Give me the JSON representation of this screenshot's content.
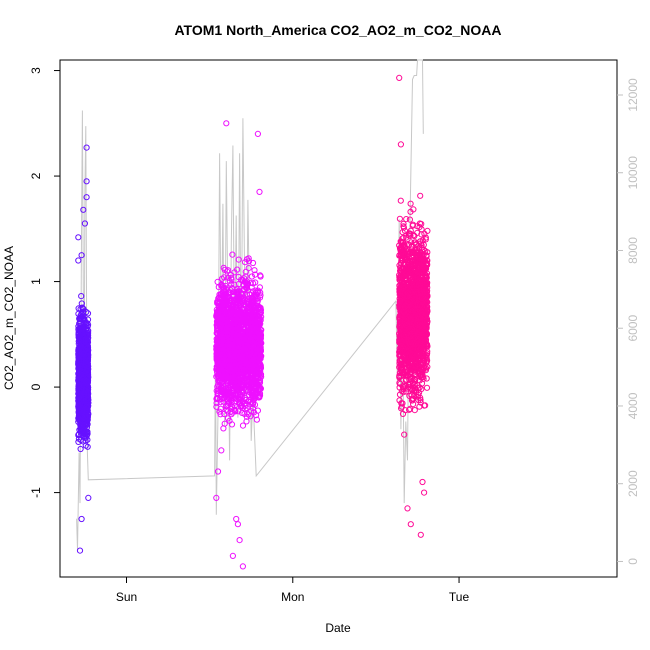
{
  "chart_data": {
    "type": "scatter",
    "title": "ATOM1 North_America CO2_AO2_m_CO2_NOAA",
    "xlabel": "Date",
    "ylabel": "CO2_AO2_m_CO2_NOAA",
    "x_ticks": [
      "Sun",
      "Mon",
      "Tue"
    ],
    "x_tick_day_positions": [
      0.0,
      1.0,
      2.0
    ],
    "xlim_days": [
      -0.4,
      2.95
    ],
    "ylim": [
      -1.8,
      3.1
    ],
    "y_ticks": [
      -1,
      0,
      1,
      2,
      3
    ],
    "y2_ticks": [
      0,
      2000,
      4000,
      6000,
      8000,
      10000,
      12000
    ],
    "y2lim": [
      -400,
      12900
    ],
    "y2_color": "#c0c0c0",
    "series": [
      {
        "color": "#6611ff",
        "points_summary": {
          "day_start": -0.29,
          "day_end": -0.23,
          "core_y_range": [
            -0.9,
            1.1
          ],
          "n_points": 1200,
          "outliers": [
            [
              -0.29,
              1.42
            ],
            [
              -0.29,
              1.2
            ],
            [
              -0.28,
              -1.55
            ],
            [
              -0.27,
              -1.25
            ],
            [
              -0.26,
              1.68
            ],
            [
              -0.24,
              2.27
            ],
            [
              -0.24,
              1.95
            ],
            [
              -0.27,
              1.25
            ],
            [
              -0.25,
              1.55
            ],
            [
              -0.24,
              1.8
            ],
            [
              -0.23,
              -1.05
            ]
          ]
        }
      },
      {
        "color": "#ee11ff",
        "points_summary": {
          "day_start": 0.54,
          "day_end": 0.81,
          "core_y_range": [
            -0.7,
            1.5
          ],
          "n_points": 2200,
          "outliers": [
            [
              0.54,
              -1.05
            ],
            [
              0.6,
              2.5
            ],
            [
              0.64,
              -1.6
            ],
            [
              0.66,
              -1.25
            ],
            [
              0.7,
              -1.7
            ],
            [
              0.68,
              -1.45
            ],
            [
              0.79,
              2.4
            ],
            [
              0.8,
              1.85
            ],
            [
              0.67,
              -1.3
            ],
            [
              0.55,
              -0.8
            ],
            [
              0.57,
              -0.6
            ],
            [
              0.76,
              -0.2
            ]
          ]
        }
      },
      {
        "color": "#ff0a96",
        "points_summary": {
          "day_start": 1.64,
          "day_end": 1.81,
          "core_y_range": [
            -0.7,
            2.1
          ],
          "n_points": 1800,
          "outliers": [
            [
              1.64,
              2.93
            ],
            [
              1.65,
              2.3
            ],
            [
              1.69,
              -1.15
            ],
            [
              1.71,
              -1.3
            ],
            [
              1.77,
              -1.4
            ],
            [
              1.8,
              1.4
            ],
            [
              1.79,
              -1.0
            ],
            [
              1.67,
              -0.45
            ],
            [
              1.78,
              -0.9
            ]
          ]
        }
      }
    ],
    "line_series": {
      "axis": "right",
      "color": "#c8c8c8",
      "points": [
        [
          -0.3,
          1100
        ],
        [
          -0.295,
          300
        ],
        [
          -0.285,
          2800
        ],
        [
          -0.28,
          1500
        ],
        [
          -0.275,
          5200
        ],
        [
          -0.27,
          8800
        ],
        [
          -0.265,
          11600
        ],
        [
          -0.26,
          7000
        ],
        [
          -0.255,
          3600
        ],
        [
          -0.25,
          9500
        ],
        [
          -0.245,
          11200
        ],
        [
          -0.24,
          6400
        ],
        [
          -0.235,
          2800
        ],
        [
          -0.23,
          2100
        ],
        [
          0.53,
          2200
        ],
        [
          0.535,
          5500
        ],
        [
          0.54,
          1200
        ],
        [
          0.55,
          3800
        ],
        [
          0.56,
          10500
        ],
        [
          0.57,
          5200
        ],
        [
          0.58,
          9200
        ],
        [
          0.59,
          3500
        ],
        [
          0.6,
          10300
        ],
        [
          0.61,
          6500
        ],
        [
          0.62,
          2600
        ],
        [
          0.63,
          8200
        ],
        [
          0.64,
          10700
        ],
        [
          0.65,
          5200
        ],
        [
          0.66,
          8900
        ],
        [
          0.67,
          3700
        ],
        [
          0.68,
          10500
        ],
        [
          0.69,
          4700
        ],
        [
          0.7,
          11400
        ],
        [
          0.71,
          7400
        ],
        [
          0.72,
          4200
        ],
        [
          0.73,
          9300
        ],
        [
          0.74,
          6400
        ],
        [
          0.75,
          3100
        ],
        [
          0.76,
          4300
        ],
        [
          0.78,
          2200
        ],
        [
          1.62,
          6700
        ],
        [
          1.63,
          4500
        ],
        [
          1.64,
          8800
        ],
        [
          1.65,
          3400
        ],
        [
          1.66,
          6700
        ],
        [
          1.67,
          1500
        ],
        [
          1.68,
          3600
        ],
        [
          1.69,
          2600
        ],
        [
          1.7,
          7600
        ],
        [
          1.72,
          12400
        ],
        [
          1.73,
          12500
        ],
        [
          1.745,
          12500
        ],
        [
          1.75,
          12900
        ],
        [
          1.78,
          12900
        ],
        [
          1.785,
          11000
        ]
      ]
    }
  }
}
